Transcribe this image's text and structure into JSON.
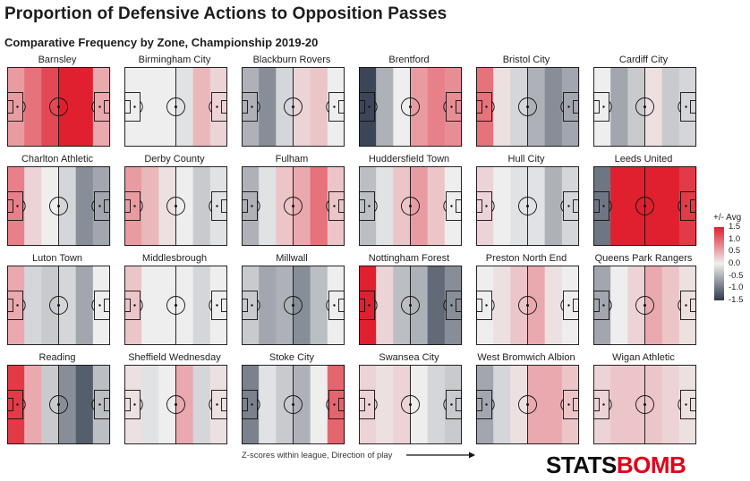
{
  "title": "Proportion of Defensive Actions to Opposition Passes",
  "subtitle": "Comparative Frequency by Zone, Championship 2019-20",
  "footnote": "Z-scores within league, Direction of play",
  "brand": {
    "part1": "STATS",
    "part2": "BOMB"
  },
  "colors": {
    "high": "#e0202f",
    "mid": "#eeeeee",
    "low": "#2f3a4d"
  },
  "chart_data": {
    "type": "heatmap",
    "zones_per_pitch": 6,
    "legend": {
      "title": "+/- Avg",
      "position": "right",
      "ticks": [
        "1.5",
        "1.0",
        "0.5",
        "0.0",
        "-0.5",
        "-1.0",
        "-1.5"
      ],
      "range": [
        -1.5,
        1.5
      ]
    },
    "teams": [
      {
        "name": "Barnsley",
        "values": [
          0.6,
          0.9,
          1.2,
          1.6,
          1.5,
          0.5
        ]
      },
      {
        "name": "Birmingham City",
        "values": [
          0.0,
          0.0,
          0.0,
          -0.1,
          0.4,
          0.2
        ]
      },
      {
        "name": "Blackburn Rovers",
        "values": [
          -0.5,
          -0.8,
          -0.2,
          0.2,
          0.3,
          0.0
        ]
      },
      {
        "name": "Brentford",
        "values": [
          -1.4,
          -0.5,
          0.0,
          0.6,
          0.8,
          0.7
        ]
      },
      {
        "name": "Bristol City",
        "values": [
          0.9,
          0.1,
          -0.2,
          -0.5,
          -0.8,
          -0.6
        ]
      },
      {
        "name": "Cardiff City",
        "values": [
          0.0,
          -0.6,
          -0.3,
          0.1,
          -0.3,
          -0.2
        ]
      },
      {
        "name": "Charlton Athletic",
        "values": [
          0.8,
          0.2,
          0.0,
          -0.2,
          -0.8,
          -0.6
        ]
      },
      {
        "name": "Derby County",
        "values": [
          0.6,
          0.4,
          0.1,
          0.0,
          -0.3,
          -0.1
        ]
      },
      {
        "name": "Fulham",
        "values": [
          -0.5,
          -0.1,
          0.3,
          0.5,
          0.9,
          0.3
        ]
      },
      {
        "name": "Huddersfield Town",
        "values": [
          -0.4,
          -0.1,
          0.3,
          0.6,
          0.3,
          0.0
        ]
      },
      {
        "name": "Hull City",
        "values": [
          0.2,
          0.0,
          -0.1,
          -0.1,
          -0.5,
          -0.2
        ]
      },
      {
        "name": "Leeds United",
        "values": [
          -1.0,
          1.7,
          1.6,
          1.5,
          1.8,
          1.3
        ]
      },
      {
        "name": "Luton Town",
        "values": [
          0.5,
          -0.2,
          -0.3,
          -0.2,
          -0.6,
          0.0
        ]
      },
      {
        "name": "Middlesbrough",
        "values": [
          0.3,
          0.0,
          0.0,
          0.0,
          -0.2,
          0.0
        ]
      },
      {
        "name": "Millwall",
        "values": [
          -0.3,
          -0.6,
          -0.5,
          -0.8,
          -0.4,
          0.0
        ]
      },
      {
        "name": "Nottingham Forest",
        "values": [
          1.6,
          0.2,
          -0.4,
          -0.5,
          -1.1,
          -0.8
        ]
      },
      {
        "name": "Preston North End",
        "values": [
          0.0,
          0.1,
          0.3,
          0.5,
          0.1,
          0.0
        ]
      },
      {
        "name": "Queens Park Rangers",
        "values": [
          -0.6,
          0.0,
          0.2,
          0.5,
          0.3,
          0.1
        ]
      },
      {
        "name": "Reading",
        "values": [
          1.3,
          0.5,
          -0.3,
          -0.8,
          -1.2,
          -0.4
        ]
      },
      {
        "name": "Sheffield Wednesday",
        "values": [
          0.1,
          -0.1,
          0.0,
          0.5,
          -0.2,
          0.1
        ]
      },
      {
        "name": "Stoke City",
        "values": [
          -0.9,
          -0.1,
          -0.3,
          -0.5,
          0.0,
          1.0
        ]
      },
      {
        "name": "Swansea City",
        "values": [
          0.2,
          0.1,
          0.2,
          0.0,
          -0.2,
          -0.3
        ]
      },
      {
        "name": "West Bromwich Albion",
        "values": [
          -0.6,
          -0.2,
          0.1,
          0.5,
          0.5,
          0.3
        ]
      },
      {
        "name": "Wigan Athletic",
        "values": [
          0.2,
          0.3,
          0.3,
          0.3,
          0.2,
          0.1
        ]
      }
    ]
  }
}
